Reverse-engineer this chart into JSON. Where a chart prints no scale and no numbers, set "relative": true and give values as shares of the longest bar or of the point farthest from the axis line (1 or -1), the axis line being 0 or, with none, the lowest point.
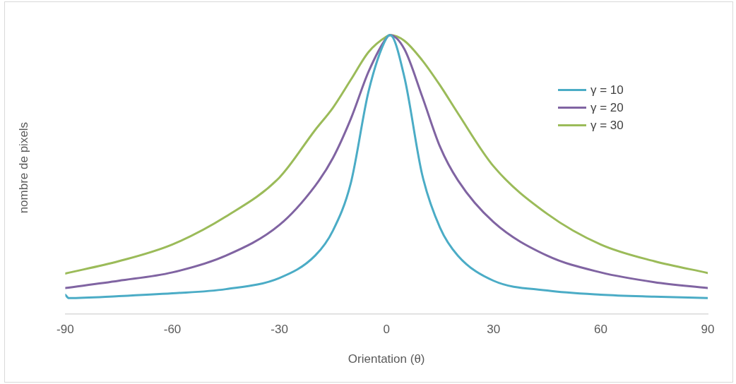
{
  "chart_data": {
    "type": "line",
    "xlabel": "Orientation (θ)",
    "ylabel": "nombre de pixels",
    "relative": true,
    "xlim": [
      -90,
      90
    ],
    "xticks": [
      -90,
      -60,
      -30,
      0,
      30,
      60,
      90
    ],
    "grid": false,
    "legend": "right",
    "marker": "none",
    "line_style": "solid",
    "x": [
      -90,
      -75,
      -60,
      -45,
      -30,
      -20,
      -15,
      -10,
      -5,
      0,
      1,
      5,
      10,
      15,
      20,
      30,
      45,
      60,
      75,
      90
    ],
    "series": [
      {
        "name": "γ = 10",
        "color": "#4bacc6",
        "x": [
          -90,
          -89,
          -75,
          -60,
          -45,
          -30,
          -20,
          -15,
          -10,
          -5,
          0,
          1,
          5,
          10,
          15,
          20,
          30,
          45,
          60,
          75,
          90
        ],
        "values": [
          0.07,
          0.058,
          0.065,
          0.075,
          0.09,
          0.13,
          0.21,
          0.3,
          0.47,
          0.8,
          0.99,
          1,
          0.85,
          0.5,
          0.31,
          0.21,
          0.12,
          0.085,
          0.07,
          0.063,
          0.058
        ]
      },
      {
        "name": "γ = 20",
        "color": "#8064a2",
        "values": [
          0.094,
          0.12,
          0.15,
          0.21,
          0.32,
          0.46,
          0.56,
          0.7,
          0.87,
          0.99,
          1,
          0.95,
          0.78,
          0.6,
          0.48,
          0.33,
          0.21,
          0.15,
          0.115,
          0.094
        ]
      },
      {
        "name": "γ = 30",
        "color": "#9bbb59",
        "values": [
          0.146,
          0.19,
          0.25,
          0.35,
          0.49,
          0.66,
          0.74,
          0.84,
          0.94,
          0.995,
          1,
          0.98,
          0.91,
          0.82,
          0.72,
          0.53,
          0.36,
          0.25,
          0.19,
          0.148
        ]
      }
    ]
  }
}
